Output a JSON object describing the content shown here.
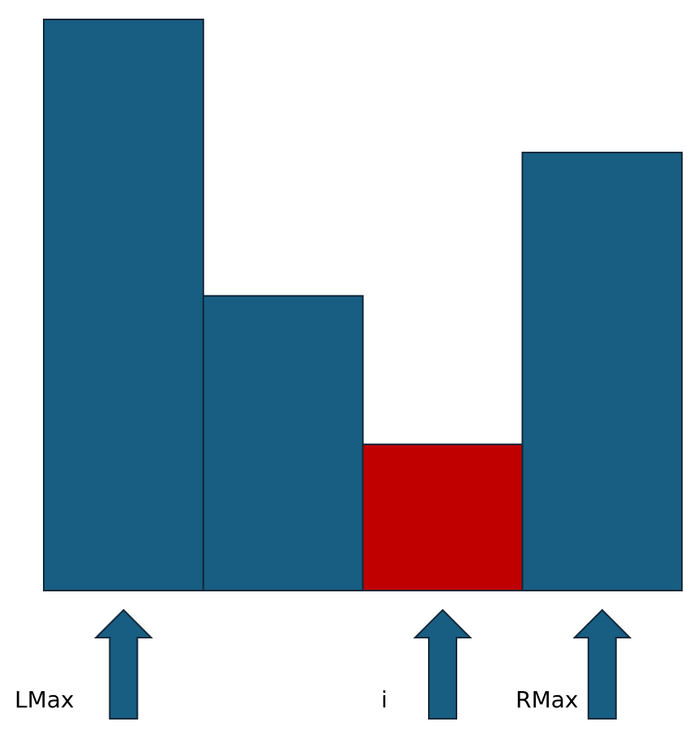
{
  "colors": {
    "bar": "#175e82",
    "highlight": "#c00000",
    "stroke": "#11283a",
    "arrow": "#175e82"
  },
  "bars": [
    {
      "height": 100,
      "highlighted": false
    },
    {
      "height": 51.6,
      "highlighted": false
    },
    {
      "height": 25.6,
      "highlighted": true
    },
    {
      "height": 76.7,
      "highlighted": false
    }
  ],
  "pointers": [
    {
      "label": "LMax",
      "bar": 0
    },
    {
      "label": "i",
      "bar": 2
    },
    {
      "label": "RMax",
      "bar": 3
    }
  ]
}
